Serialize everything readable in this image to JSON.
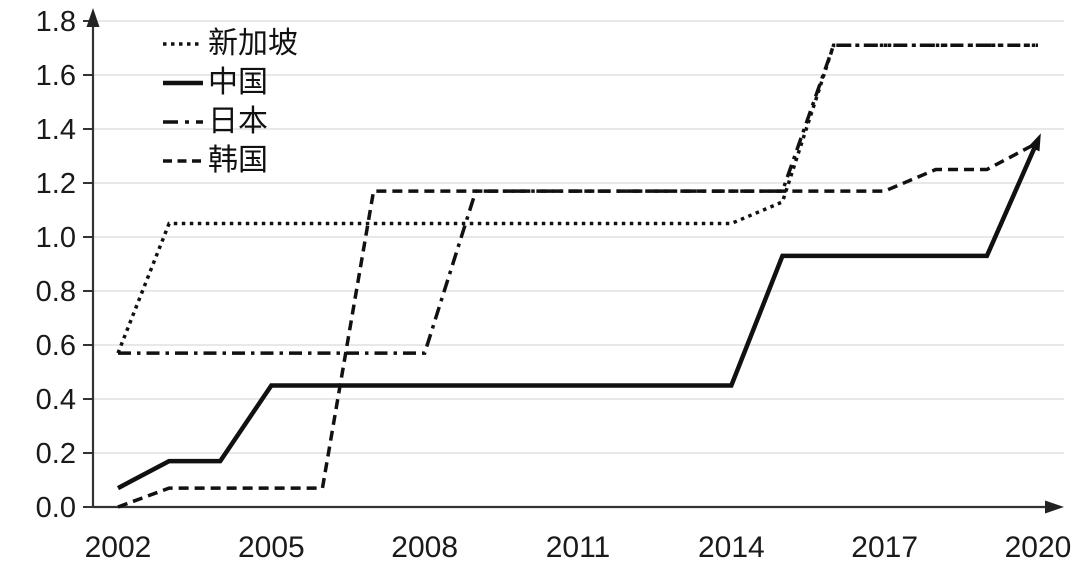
{
  "figure": {
    "background": "#ffffff",
    "axis_color": "#333333",
    "text_color": "#1a1a1a"
  },
  "chart_data": {
    "type": "line",
    "title": "",
    "xlabel": "",
    "ylabel": "",
    "x": [
      2002,
      2003,
      2004,
      2005,
      2006,
      2007,
      2008,
      2009,
      2010,
      2011,
      2012,
      2013,
      2014,
      2015,
      2016,
      2017,
      2018,
      2019,
      2020
    ],
    "series": [
      {
        "name": "新加坡",
        "slug": "singapore",
        "style": "dotted",
        "values": [
          0.57,
          1.05,
          1.05,
          1.05,
          1.05,
          1.05,
          1.05,
          1.05,
          1.05,
          1.05,
          1.05,
          1.05,
          1.05,
          1.13,
          1.71,
          1.71,
          1.71,
          1.71,
          1.71
        ]
      },
      {
        "name": "中国",
        "slug": "china",
        "style": "solid",
        "arrow_end": true,
        "values": [
          0.07,
          0.17,
          0.17,
          0.45,
          0.45,
          0.45,
          0.45,
          0.45,
          0.45,
          0.45,
          0.45,
          0.45,
          0.45,
          0.93,
          0.93,
          0.93,
          0.93,
          0.93,
          1.36
        ]
      },
      {
        "name": "日本",
        "slug": "japan",
        "style": "dashdot",
        "values": [
          0.57,
          0.57,
          0.57,
          0.57,
          0.57,
          0.57,
          0.57,
          1.17,
          1.17,
          1.17,
          1.17,
          1.17,
          1.17,
          1.17,
          1.71,
          1.71,
          1.71,
          1.71,
          1.71
        ]
      },
      {
        "name": "韩国",
        "slug": "korea",
        "style": "dashed",
        "values": [
          0.0,
          0.07,
          0.07,
          0.07,
          0.07,
          1.17,
          1.17,
          1.17,
          1.17,
          1.17,
          1.17,
          1.17,
          1.17,
          1.17,
          1.17,
          1.17,
          1.25,
          1.25,
          1.35
        ]
      }
    ],
    "xticks": [
      "2002",
      "2005",
      "2008",
      "2011",
      "2014",
      "2017",
      "2020"
    ],
    "yticks": [
      "0.0",
      "0.2",
      "0.4",
      "0.6",
      "0.8",
      "1.0",
      "1.2",
      "1.4",
      "1.6",
      "1.8"
    ],
    "xlim": [
      2002,
      2020
    ],
    "ylim": [
      0.0,
      1.8
    ],
    "grid": "horizontal",
    "grid_color": "#d9d9d9",
    "line_color": "#111111",
    "legend_position": "top-left",
    "axes_arrows": true
  }
}
